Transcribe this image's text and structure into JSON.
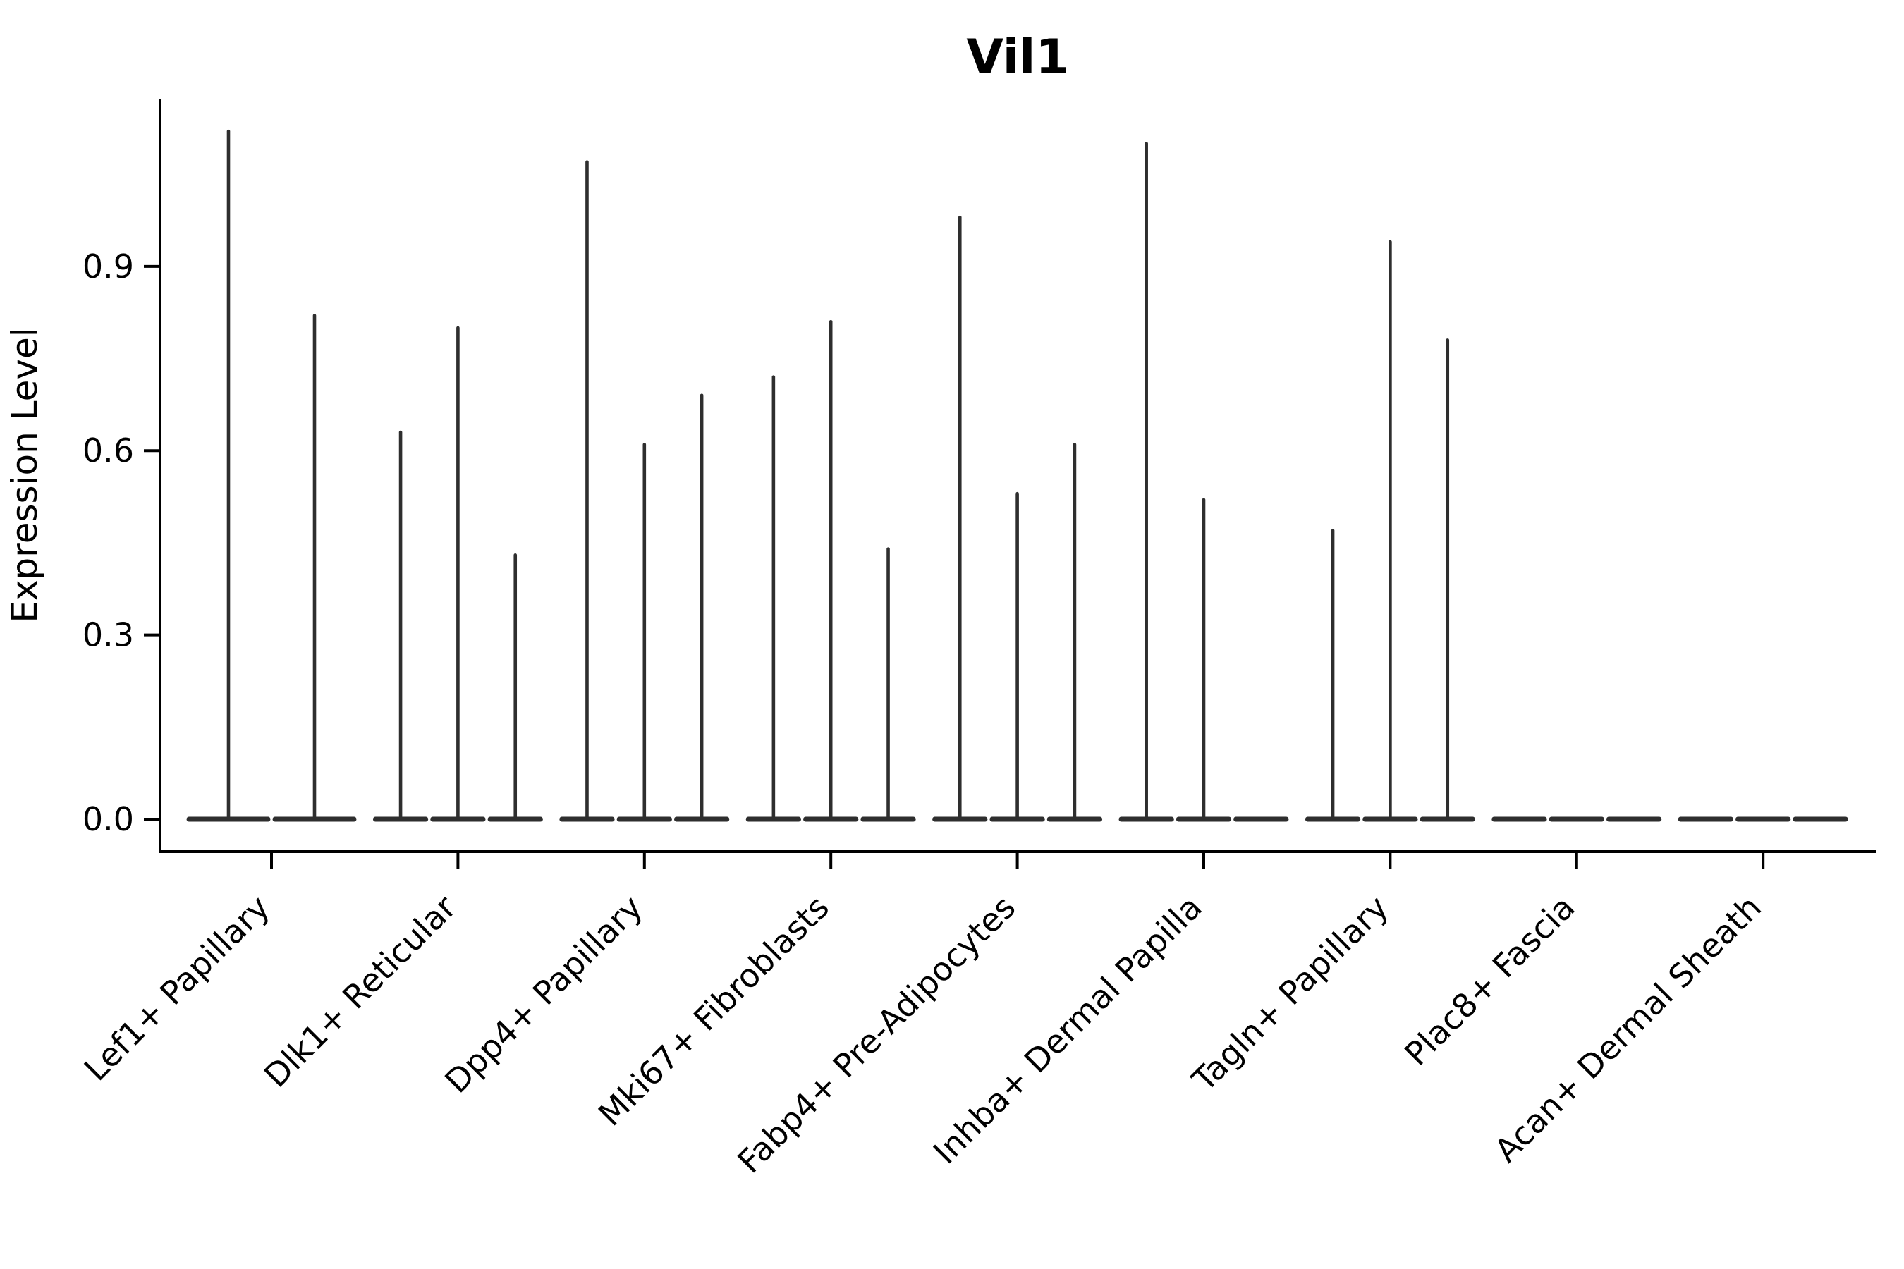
{
  "page": {
    "background": "#ffffff"
  },
  "chart_data": {
    "type": "violin",
    "title": "Vil1",
    "ylabel": "Expression Level",
    "xlabel": "",
    "grid": false,
    "legend": false,
    "ylim": [
      -0.053,
      1.17
    ],
    "yticks": [
      {
        "label": "0.0",
        "value": 0.0
      },
      {
        "label": "0.3",
        "value": 0.3
      },
      {
        "label": "0.6",
        "value": 0.6
      },
      {
        "label": "0.9",
        "value": 0.9
      }
    ],
    "categories": [
      "Lef1+ Papillary",
      "Dlk1+ Reticular",
      "Dpp4+ Papillary",
      "Mki67+ Fibroblasts",
      "Fabp4+ Pre-Adipocytes",
      "Inhba+ Dermal Papilla",
      "Tagln+ Papillary",
      "Plac8+ Fascia",
      "Acan+ Dermal Sheath"
    ],
    "groups": [
      {
        "category": "Lef1+ Papillary",
        "violin_max_values": [
          1.12,
          0.82
        ]
      },
      {
        "category": "Dlk1+ Reticular",
        "violin_max_values": [
          0.63,
          0.8,
          0.43
        ]
      },
      {
        "category": "Dpp4+ Papillary",
        "violin_max_values": [
          1.07,
          0.61,
          0.69
        ]
      },
      {
        "category": "Mki67+ Fibroblasts",
        "violin_max_values": [
          0.72,
          0.81,
          0.44
        ]
      },
      {
        "category": "Fabp4+ Pre-Adipocytes",
        "violin_max_values": [
          0.98,
          0.53,
          0.61
        ]
      },
      {
        "category": "Inhba+ Dermal Papilla",
        "violin_max_values": [
          1.1,
          0.52,
          0.0
        ]
      },
      {
        "category": "Tagln+ Papillary",
        "violin_max_values": [
          0.47,
          0.94,
          0.78
        ]
      },
      {
        "category": "Plac8+ Fascia",
        "violin_max_values": [
          0.0,
          0.0,
          0.0
        ]
      },
      {
        "category": "Acan+ Dermal Sheath",
        "violin_max_values": [
          0.0,
          0.0,
          0.0
        ]
      }
    ],
    "colors": {
      "violin": "#2e2e2e",
      "axis": "#000000",
      "text": "#000000",
      "background": "#ffffff"
    }
  }
}
